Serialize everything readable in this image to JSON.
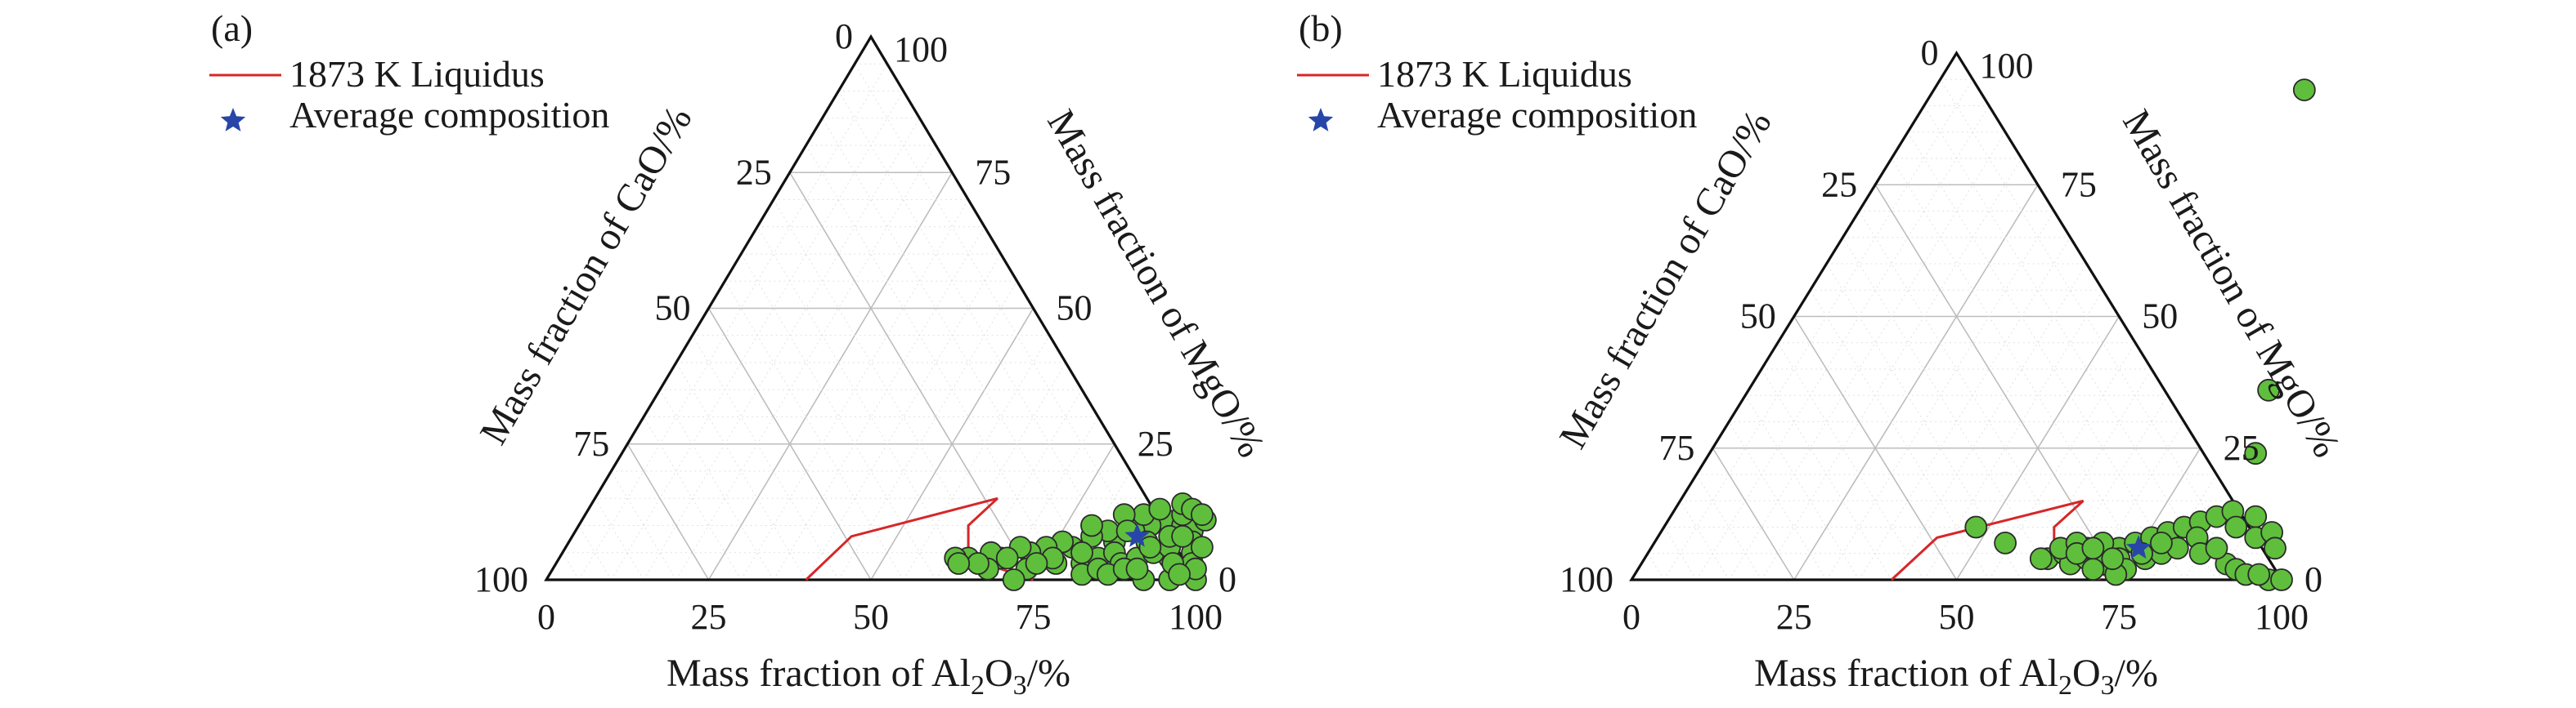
{
  "chart_data": [
    {
      "type": "scatter",
      "subtype": "ternary",
      "panel_label": "(a)",
      "axes": {
        "bottom": {
          "label_pre": "Mass fraction of Al",
          "sub1": "2",
          "label_mid": "O",
          "sub2": "3",
          "label_post": "/%",
          "ticks": [
            "0",
            "25",
            "50",
            "75",
            "100"
          ]
        },
        "left": {
          "label": "Mass fraction of CaO/%",
          "ticks": [
            "100",
            "75",
            "50",
            "25",
            "0"
          ]
        },
        "right": {
          "label": "Mass fraction of MgO/%",
          "ticks": [
            "100",
            "75",
            "50",
            "25",
            "0"
          ]
        }
      },
      "grid": true,
      "legend": {
        "position": "top-left",
        "items": [
          {
            "label": "1873 K Liquidus",
            "color": "#d62728",
            "marker": "line"
          },
          {
            "label": "Average composition",
            "color": "#2846a8",
            "marker": "star"
          }
        ]
      },
      "liquidus": [
        [
          [
            40,
            0
          ],
          [
            43,
            8
          ],
          [
            62,
            15
          ],
          [
            60,
            10
          ],
          [
            63,
            4
          ],
          [
            75,
            0
          ]
        ],
        [
          [
            70,
            3
          ],
          [
            72,
            0
          ]
        ]
      ],
      "average": {
        "al2o3": 87,
        "mgo": 8
      },
      "points": [
        [
          90,
          11
        ],
        [
          93,
          10
        ],
        [
          95,
          9
        ],
        [
          92,
          12
        ],
        [
          96,
          7
        ],
        [
          97,
          5
        ],
        [
          94,
          4
        ],
        [
          98,
          3
        ],
        [
          100,
          0
        ],
        [
          96,
          0
        ],
        [
          92,
          0
        ],
        [
          88,
          10
        ],
        [
          86,
          9
        ],
        [
          84,
          7
        ],
        [
          82,
          9
        ],
        [
          80,
          8
        ],
        [
          78,
          6
        ],
        [
          76,
          7
        ],
        [
          74,
          6
        ],
        [
          72,
          5
        ],
        [
          70,
          6
        ],
        [
          68,
          4
        ],
        [
          66,
          5
        ],
        [
          63,
          4
        ],
        [
          61,
          4
        ],
        [
          67,
          2
        ],
        [
          73,
          2
        ],
        [
          77,
          3
        ],
        [
          81,
          3
        ],
        [
          83,
          4
        ],
        [
          85,
          5
        ],
        [
          87,
          3
        ],
        [
          89,
          4
        ],
        [
          91,
          5
        ],
        [
          93,
          6
        ],
        [
          95,
          3
        ],
        [
          89,
          7
        ],
        [
          86,
          12
        ],
        [
          90,
          6
        ],
        [
          92,
          8
        ],
        [
          94,
          8
        ],
        [
          96,
          11
        ],
        [
          98,
          6
        ],
        [
          99,
          2
        ],
        [
          97,
          1
        ],
        [
          88,
          13
        ],
        [
          91,
          14
        ],
        [
          93,
          13
        ],
        [
          95,
          12
        ],
        [
          79,
          10
        ],
        [
          83,
          12
        ],
        [
          85,
          9
        ],
        [
          76,
          4
        ],
        [
          74,
          3
        ],
        [
          69,
          4
        ],
        [
          65,
          3
        ],
        [
          72,
          0
        ],
        [
          62,
          3
        ],
        [
          80,
          5
        ],
        [
          82,
          1
        ],
        [
          84,
          2
        ],
        [
          86,
          1
        ],
        [
          88,
          2
        ],
        [
          90,
          2
        ]
      ]
    },
    {
      "type": "scatter",
      "subtype": "ternary",
      "panel_label": "(b)",
      "axes": {
        "bottom": {
          "label_pre": "Mass fraction of Al",
          "sub1": "2",
          "label_mid": "O",
          "sub2": "3",
          "label_post": "/%",
          "ticks": [
            "0",
            "25",
            "50",
            "75",
            "100"
          ]
        },
        "left": {
          "label": "Mass fraction of CaO/%",
          "ticks": [
            "100",
            "75",
            "50",
            "25",
            "0"
          ]
        },
        "right": {
          "label": "Mass fraction of MgO/%",
          "ticks": [
            "100",
            "75",
            "50",
            "25",
            "0"
          ]
        }
      },
      "grid": true,
      "legend": {
        "position": "top-left",
        "items": [
          {
            "label": "1873 K Liquidus",
            "color": "#d62728",
            "marker": "line"
          },
          {
            "label": "Average composition",
            "color": "#2846a8",
            "marker": "star"
          }
        ]
      },
      "liquidus": [
        [
          [
            40,
            0
          ],
          [
            43,
            8
          ],
          [
            62,
            15
          ],
          [
            60,
            10
          ],
          [
            63,
            4
          ],
          [
            75,
            0
          ]
        ],
        [
          [
            70,
            3
          ],
          [
            72,
            0
          ]
        ]
      ],
      "average": {
        "al2o3": 75,
        "mgo": 6
      },
      "points": [
        [
          57,
          93
        ],
        [
          80,
          36
        ],
        [
          84,
          24
        ],
        [
          48,
          10
        ],
        [
          54,
          7
        ],
        [
          62,
          4
        ],
        [
          64,
          5
        ],
        [
          66,
          3
        ],
        [
          68,
          4
        ],
        [
          70,
          5
        ],
        [
          72,
          6
        ],
        [
          74,
          7
        ],
        [
          76,
          8
        ],
        [
          78,
          9
        ],
        [
          80,
          10
        ],
        [
          82,
          11
        ],
        [
          84,
          12
        ],
        [
          86,
          13
        ],
        [
          88,
          10
        ],
        [
          90,
          12
        ],
        [
          92,
          8
        ],
        [
          94,
          9
        ],
        [
          96,
          6
        ],
        [
          90,
          3
        ],
        [
          92,
          2
        ],
        [
          94,
          1
        ],
        [
          98,
          0
        ],
        [
          100,
          0
        ],
        [
          96,
          1
        ],
        [
          67,
          6
        ],
        [
          69,
          7
        ],
        [
          71,
          3
        ],
        [
          73,
          4
        ],
        [
          75,
          2
        ],
        [
          77,
          4
        ],
        [
          79,
          5
        ],
        [
          81,
          6
        ],
        [
          83,
          8
        ],
        [
          85,
          5
        ],
        [
          87,
          6
        ],
        [
          61,
          4
        ],
        [
          63,
          6
        ],
        [
          65,
          7
        ],
        [
          70,
          2
        ],
        [
          74,
          1
        ],
        [
          78,
          7
        ],
        [
          66,
          5
        ],
        [
          68,
          6
        ],
        [
          72,
          4
        ],
        [
          76,
          5
        ]
      ]
    }
  ]
}
